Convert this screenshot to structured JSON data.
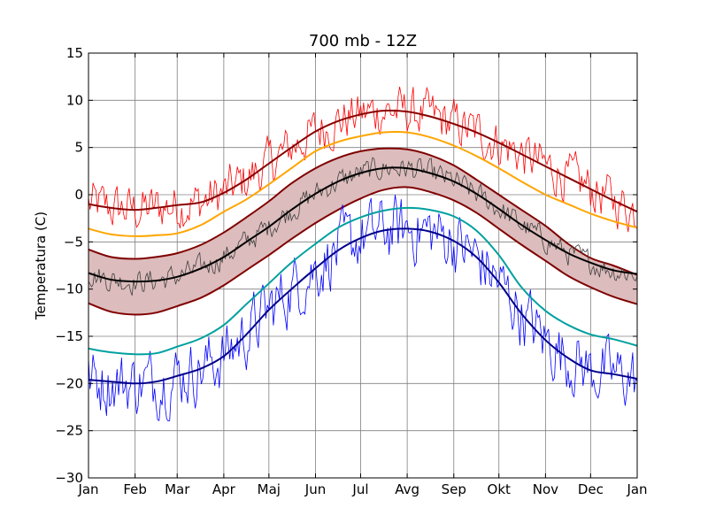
{
  "chart_data": {
    "type": "line",
    "title": "700 mb - 12Z",
    "xlabel": "",
    "ylabel": "Temperatura (C)",
    "xlim": [
      0,
      365
    ],
    "ylim": [
      -30,
      15
    ],
    "grid": true,
    "month_ticks": [
      {
        "label": "Jan",
        "day": 0
      },
      {
        "label": "Feb",
        "day": 31
      },
      {
        "label": "Mar",
        "day": 59
      },
      {
        "label": "Apr",
        "day": 90
      },
      {
        "label": "Maj",
        "day": 120
      },
      {
        "label": "Jun",
        "day": 151
      },
      {
        "label": "Jul",
        "day": 181
      },
      {
        "label": "Avg",
        "day": 212
      },
      {
        "label": "Sep",
        "day": 243
      },
      {
        "label": "Okt",
        "day": 273
      },
      {
        "label": "Nov",
        "day": 304
      },
      {
        "label": "Dec",
        "day": 334
      },
      {
        "label": "Jan",
        "day": 365
      }
    ],
    "y_ticks": [
      15,
      10,
      5,
      0,
      -5,
      -10,
      -15,
      -20,
      -25,
      -30
    ],
    "x_days": [
      0,
      15,
      31,
      45,
      59,
      75,
      90,
      105,
      120,
      135,
      151,
      166,
      181,
      196,
      212,
      227,
      243,
      258,
      273,
      288,
      304,
      319,
      334,
      349,
      365
    ],
    "band": {
      "color": "#dcbcbc",
      "stroke": "#800000",
      "upper": [
        -5.8,
        -6.6,
        -6.8,
        -6.6,
        -6.2,
        -5.3,
        -4.0,
        -2.4,
        -0.7,
        1.2,
        2.8,
        3.9,
        4.6,
        4.9,
        4.8,
        4.2,
        3.1,
        1.6,
        0.0,
        -1.6,
        -3.3,
        -5.2,
        -6.7,
        -7.5,
        -8.5
      ],
      "lower": [
        -11.5,
        -12.4,
        -12.7,
        -12.5,
        -11.8,
        -10.9,
        -9.6,
        -8.0,
        -6.4,
        -4.7,
        -3.0,
        -1.6,
        -0.4,
        0.5,
        0.8,
        0.3,
        -0.6,
        -1.9,
        -3.6,
        -5.3,
        -7.0,
        -8.6,
        -9.8,
        -10.8,
        -11.6
      ]
    },
    "series": [
      {
        "color": "#8b0000",
        "width": 2,
        "values": [
          -1.0,
          -1.4,
          -1.6,
          -1.4,
          -1.1,
          -0.8,
          0.2,
          1.6,
          3.3,
          5.0,
          6.7,
          7.8,
          8.5,
          8.9,
          8.8,
          8.3,
          7.5,
          6.6,
          5.5,
          4.3,
          3.0,
          1.8,
          0.6,
          -0.6,
          -1.8
        ]
      },
      {
        "color": "#ffa500",
        "width": 2,
        "values": [
          -3.6,
          -4.2,
          -4.4,
          -4.3,
          -4.1,
          -3.2,
          -1.8,
          -0.5,
          1.1,
          2.8,
          4.6,
          5.6,
          6.2,
          6.6,
          6.6,
          6.1,
          5.2,
          4.1,
          2.8,
          1.4,
          0.0,
          -1.0,
          -2.0,
          -2.8,
          -3.5
        ]
      },
      {
        "color": "#000000",
        "width": 2,
        "values": [
          -8.3,
          -9.0,
          -9.2,
          -9.1,
          -8.7,
          -7.8,
          -6.6,
          -5.0,
          -3.4,
          -1.6,
          0.1,
          1.4,
          2.3,
          2.8,
          2.8,
          2.3,
          1.4,
          0.1,
          -1.5,
          -3.2,
          -4.8,
          -6.2,
          -7.2,
          -8.0,
          -8.4
        ]
      },
      {
        "color": "#00a0a0",
        "width": 2,
        "values": [
          -16.3,
          -16.7,
          -16.9,
          -16.8,
          -16.1,
          -15.2,
          -13.8,
          -11.6,
          -9.4,
          -7.2,
          -5.2,
          -3.5,
          -2.4,
          -1.7,
          -1.4,
          -1.6,
          -2.3,
          -3.8,
          -6.4,
          -9.8,
          -12.3,
          -13.8,
          -14.8,
          -15.3,
          -16.0
        ]
      },
      {
        "color": "#00008b",
        "width": 2,
        "values": [
          -19.6,
          -19.8,
          -20.0,
          -19.8,
          -19.2,
          -18.4,
          -17.1,
          -14.8,
          -12.2,
          -10.0,
          -7.8,
          -5.9,
          -4.6,
          -3.8,
          -3.6,
          -3.9,
          -4.9,
          -6.6,
          -9.3,
          -12.6,
          -15.4,
          -17.3,
          -18.6,
          -19.0,
          -19.5
        ]
      }
    ],
    "noisy_series": [
      {
        "color": "#ff0000",
        "base_series": 0,
        "amplitude": 2.2,
        "width": 0.8
      },
      {
        "color": "#404040",
        "base_series": 2,
        "amplitude": 1.1,
        "width": 0.8
      },
      {
        "color": "#0000ff",
        "base_series": 4,
        "amplitude": 3.0,
        "width": 0.8
      }
    ]
  }
}
